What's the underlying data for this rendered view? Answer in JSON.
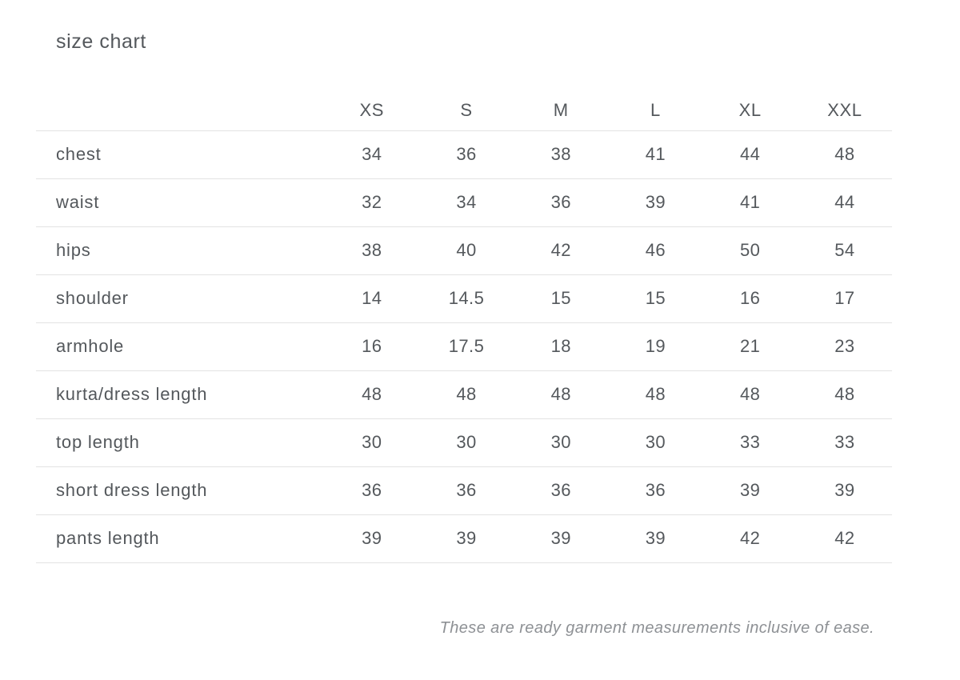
{
  "chart_data": {
    "type": "table",
    "title": "size chart",
    "columns": [
      "XS",
      "S",
      "M",
      "L",
      "XL",
      "XXL"
    ],
    "rows": [
      {
        "label": "chest",
        "values": [
          "34",
          "36",
          "38",
          "41",
          "44",
          "48"
        ]
      },
      {
        "label": "waist",
        "values": [
          "32",
          "34",
          "36",
          "39",
          "41",
          "44"
        ]
      },
      {
        "label": "hips",
        "values": [
          "38",
          "40",
          "42",
          "46",
          "50",
          "54"
        ]
      },
      {
        "label": "shoulder",
        "values": [
          "14",
          "14.5",
          "15",
          "15",
          "16",
          "17"
        ]
      },
      {
        "label": "armhole",
        "values": [
          "16",
          "17.5",
          "18",
          "19",
          "21",
          "23"
        ]
      },
      {
        "label": "kurta/dress length",
        "values": [
          "48",
          "48",
          "48",
          "48",
          "48",
          "48"
        ]
      },
      {
        "label": "top length",
        "values": [
          "30",
          "30",
          "30",
          "30",
          "33",
          "33"
        ]
      },
      {
        "label": "short dress length",
        "values": [
          "36",
          "36",
          "36",
          "36",
          "39",
          "39"
        ]
      },
      {
        "label": "pants length",
        "values": [
          "39",
          "39",
          "39",
          "39",
          "42",
          "42"
        ]
      }
    ],
    "footnote": "These are ready garment measurements inclusive of ease.",
    "layout": {
      "grid": "horizontal-row-dividers",
      "legend": "none"
    },
    "colors": {
      "text": "#54585c",
      "line": "#e3e3e3",
      "footnote": "#8e9195"
    }
  }
}
